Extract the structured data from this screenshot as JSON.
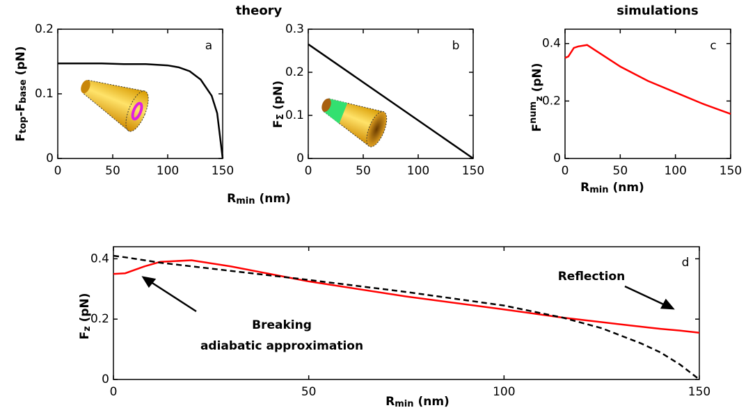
{
  "headings": [
    "theory",
    "simulations"
  ],
  "chart_data": [
    {
      "type": "line",
      "panel": "a",
      "ylabel": [
        {
          "text": "F"
        },
        {
          "text": "top",
          "style": "sub"
        },
        {
          "text": "-F"
        },
        {
          "text": "base",
          "style": "sub"
        },
        {
          "text": " (pN)"
        }
      ],
      "xlim": [
        0,
        150
      ],
      "xticks": [
        0,
        50,
        100,
        150
      ],
      "ylim": [
        0,
        0.2
      ],
      "yticks": [
        0,
        0.1,
        0.2
      ],
      "x": [
        0,
        20,
        40,
        60,
        80,
        100,
        110,
        120,
        130,
        140,
        145,
        150
      ],
      "series": [
        {
          "color": "#000000",
          "values": [
            0.147,
            0.147,
            0.147,
            0.146,
            0.146,
            0.144,
            0.141,
            0.135,
            0.122,
            0.097,
            0.07,
            0.0
          ]
        }
      ]
    },
    {
      "type": "line",
      "panel": "b",
      "xlabel": [
        {
          "text": "R"
        },
        {
          "text": "min",
          "style": "sub"
        },
        {
          "text": " (nm)"
        }
      ],
      "ylabel": [
        {
          "text": "F"
        },
        {
          "text": "Σ",
          "style": "sub"
        },
        {
          "text": " (pN)"
        }
      ],
      "xlim": [
        0,
        150
      ],
      "xticks": [
        0,
        50,
        100,
        150
      ],
      "ylim": [
        0,
        0.3
      ],
      "yticks": [
        0,
        0.1,
        0.2,
        0.3
      ],
      "x": [
        0,
        150
      ],
      "series": [
        {
          "color": "#000000",
          "values": [
            0.265,
            0.0
          ]
        }
      ]
    },
    {
      "type": "line",
      "panel": "c",
      "xlabel": [
        {
          "text": "R"
        },
        {
          "text": "min",
          "style": "sub"
        },
        {
          "text": " (nm)"
        }
      ],
      "ylabel": [
        {
          "text": "F"
        },
        {
          "text": "num",
          "style": "sup"
        },
        {
          "text": "z",
          "style": "sub"
        },
        {
          "text": " (pN)"
        }
      ],
      "xlim": [
        0,
        150
      ],
      "xticks": [
        0,
        50,
        100,
        150
      ],
      "ylim": [
        0,
        0.45
      ],
      "yticks": [
        0,
        0.2,
        0.4
      ],
      "x": [
        0,
        3,
        8,
        12,
        20,
        30,
        50,
        75,
        100,
        125,
        150
      ],
      "series": [
        {
          "color": "#ff0000",
          "values": [
            0.35,
            0.355,
            0.385,
            0.39,
            0.395,
            0.37,
            0.32,
            0.27,
            0.23,
            0.19,
            0.155
          ]
        }
      ]
    },
    {
      "type": "line",
      "panel": "d",
      "xlabel": [
        {
          "text": "R"
        },
        {
          "text": "min",
          "style": "sub"
        },
        {
          "text": " (nm)"
        }
      ],
      "ylabel": [
        {
          "text": "F"
        },
        {
          "text": "z",
          "style": "sub"
        },
        {
          "text": " (pN)"
        }
      ],
      "xlim": [
        0,
        150
      ],
      "xticks": [
        0,
        50,
        100,
        150
      ],
      "ylim": [
        0,
        0.44
      ],
      "yticks": [
        0,
        0.2,
        0.4
      ],
      "x": [
        0,
        3,
        8,
        12,
        20,
        30,
        50,
        75,
        100,
        115,
        125,
        135,
        140,
        145,
        150
      ],
      "series": [
        {
          "color": "#ff0000",
          "values": [
            0.35,
            0.352,
            0.375,
            0.39,
            0.395,
            0.375,
            0.325,
            0.275,
            0.232,
            0.205,
            0.19,
            0.175,
            0.168,
            0.162,
            0.155
          ]
        },
        {
          "color": "#000000",
          "style": "dashed",
          "values": [
            0.41,
            0.405,
            0.395,
            0.387,
            0.375,
            0.36,
            0.33,
            0.29,
            0.245,
            0.205,
            0.17,
            0.12,
            0.09,
            0.05,
            0.0
          ]
        }
      ],
      "annotations": [
        {
          "lines": [
            "Breaking",
            "adiabatic approximation"
          ]
        },
        {
          "lines": [
            "Reflection"
          ]
        }
      ]
    }
  ]
}
